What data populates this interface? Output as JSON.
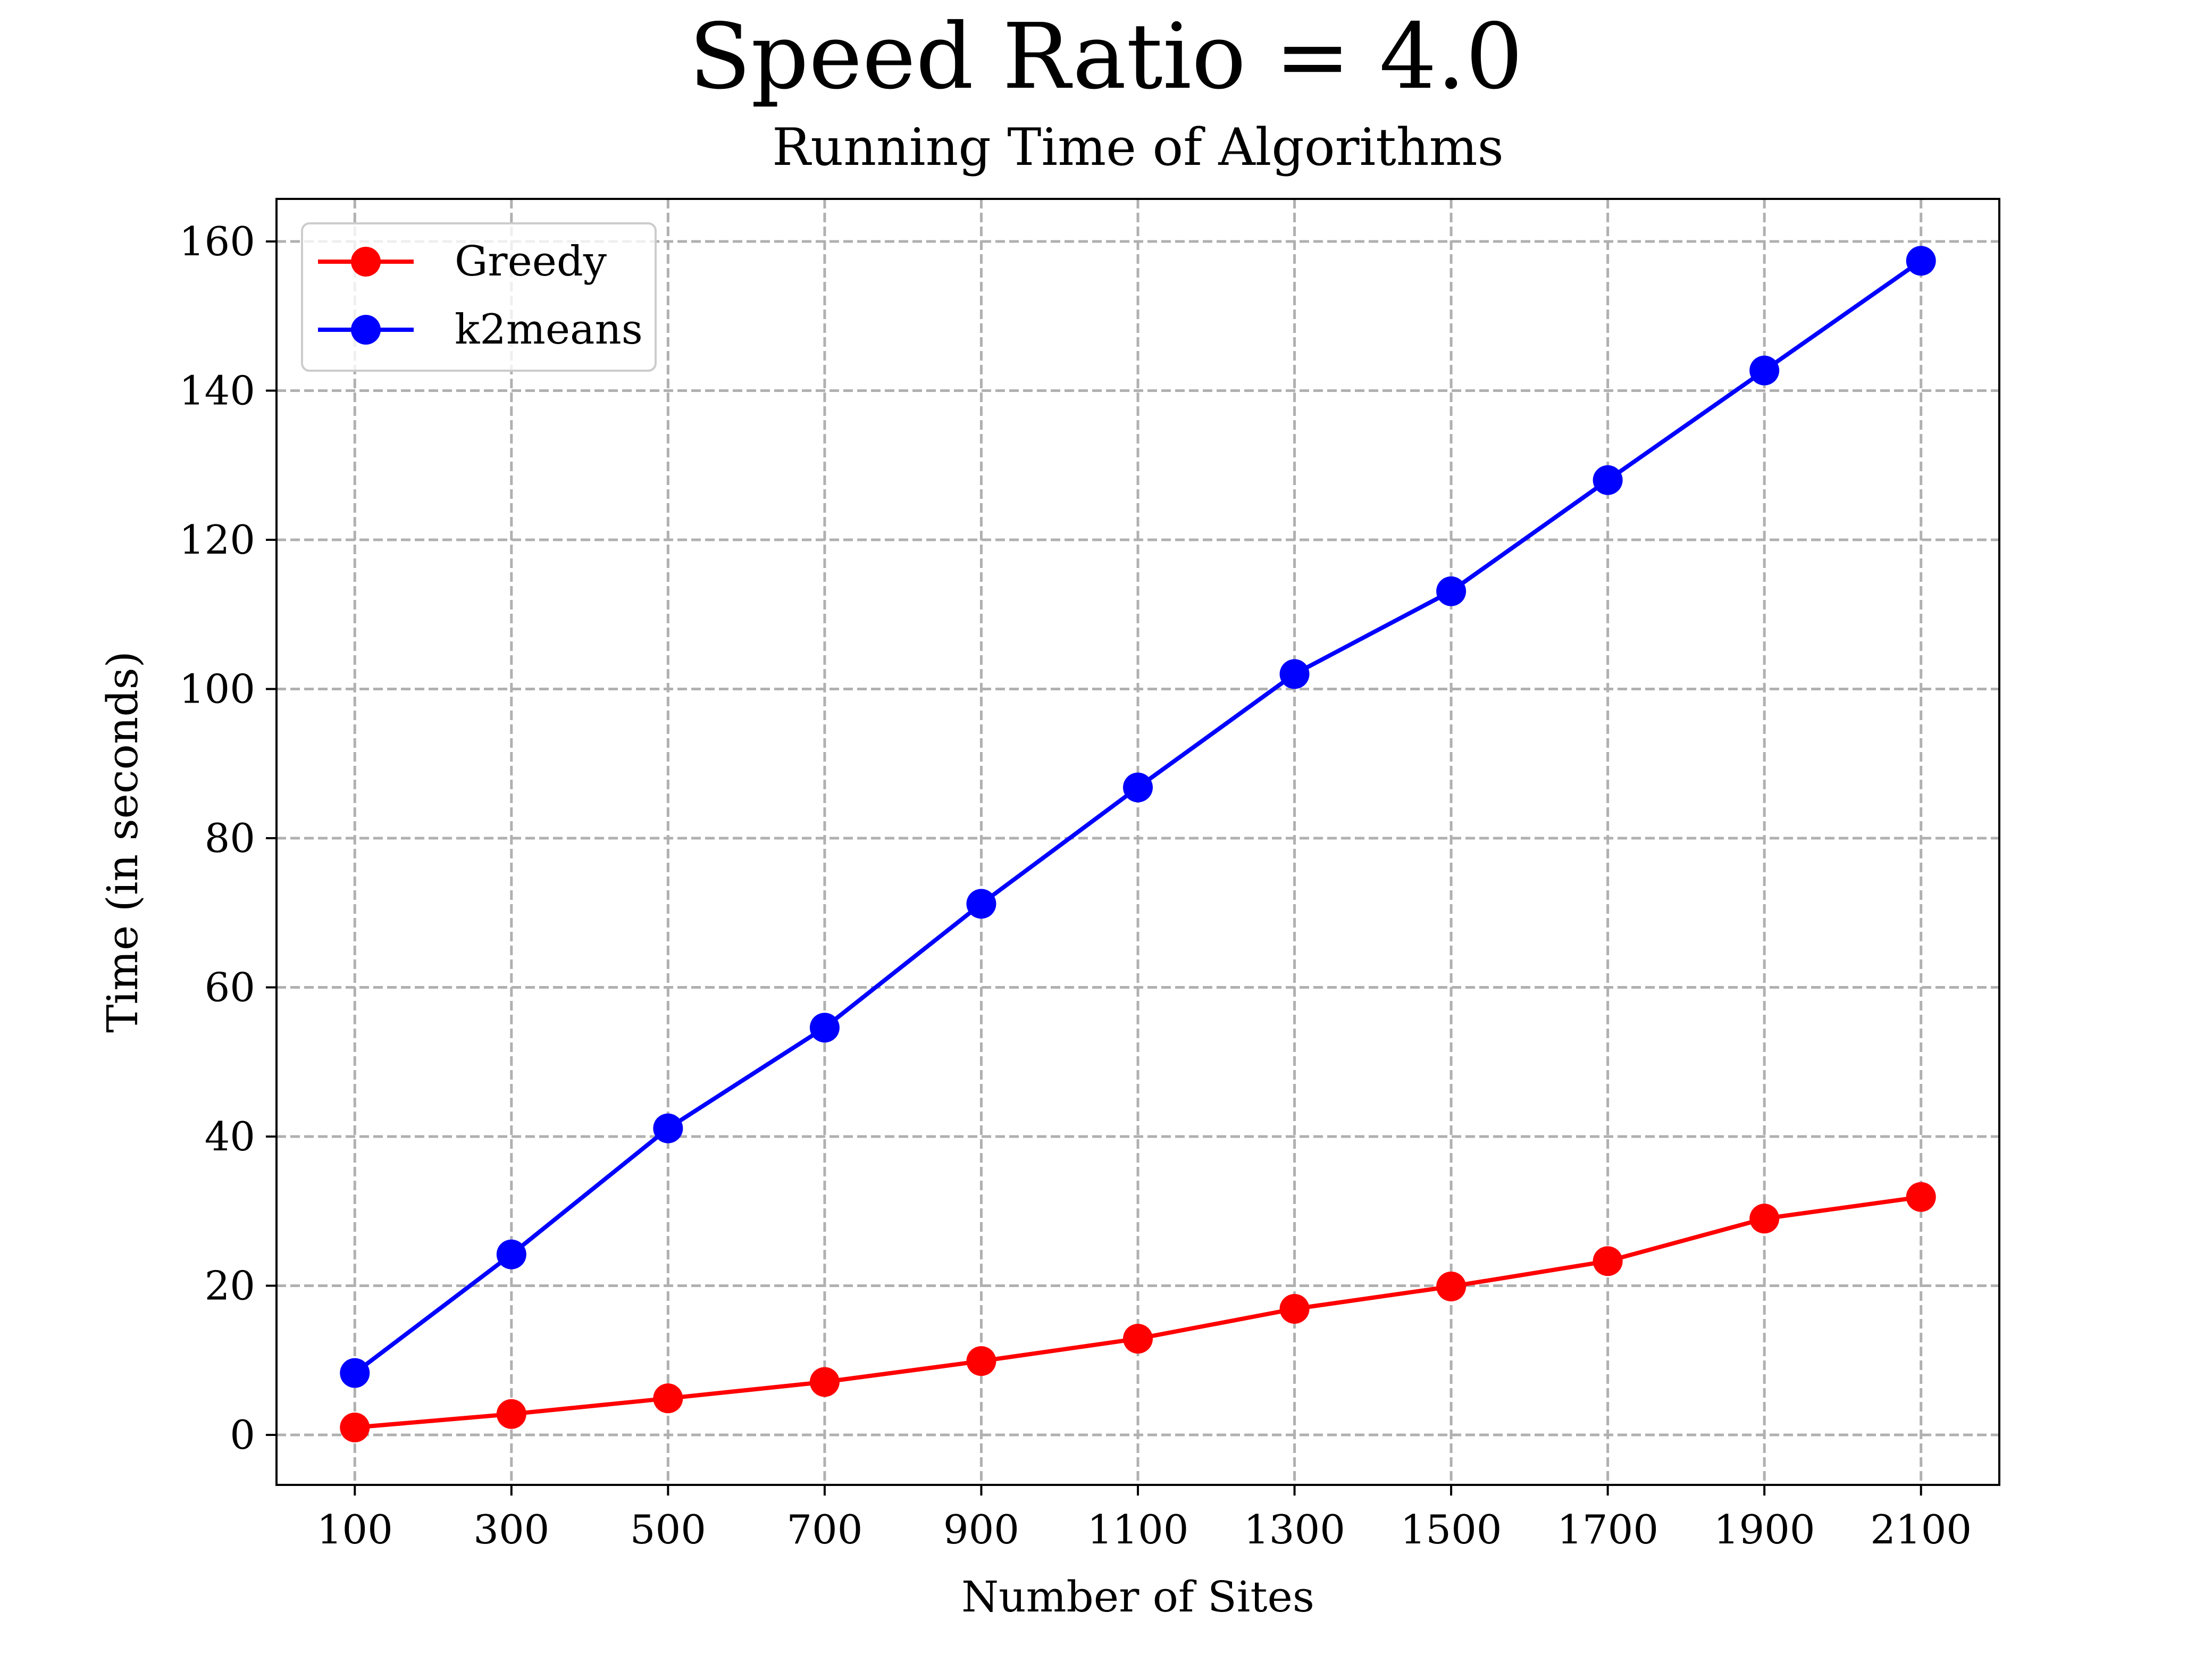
{
  "chart_data": {
    "type": "line",
    "suptitle": "Speed Ratio = 4.0",
    "title": "Running Time of Algorithms",
    "xlabel": "Number of Sites",
    "ylabel": "Time (in seconds)",
    "x": [
      100,
      300,
      500,
      700,
      900,
      1100,
      1300,
      1500,
      1700,
      1900,
      2100
    ],
    "x_tick_labels": [
      "100",
      "300",
      "500",
      "700",
      "900",
      "1100",
      "1300",
      "1500",
      "1700",
      "1900",
      "2100"
    ],
    "y_ticks": [
      0,
      20,
      40,
      60,
      80,
      100,
      120,
      140,
      160
    ],
    "y_tick_labels": [
      "0",
      "20",
      "40",
      "60",
      "80",
      "100",
      "120",
      "140",
      "160"
    ],
    "xlim": [
      0,
      2200
    ],
    "ylim": [
      -6.7,
      165.7
    ],
    "grid": true,
    "legend_position": "top-left",
    "series": [
      {
        "name": "Greedy",
        "color": "#ff0000",
        "marker": "circle",
        "values": [
          1.0,
          2.8,
          4.9,
          7.1,
          9.9,
          12.9,
          16.9,
          19.9,
          23.3,
          29.0,
          31.9
        ]
      },
      {
        "name": "k2means",
        "color": "#0000ff",
        "marker": "circle",
        "values": [
          8.3,
          24.2,
          41.1,
          54.6,
          71.2,
          86.8,
          102.0,
          113.1,
          128.0,
          142.7,
          157.4
        ]
      }
    ]
  }
}
